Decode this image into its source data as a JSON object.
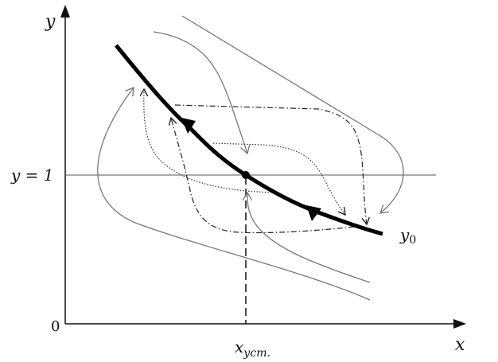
{
  "labels": {
    "y_axis": "y",
    "x_axis": "x",
    "y_equals_one": "y = 1",
    "origin": "0",
    "x_steady_main": "x",
    "x_steady_sub": "уст.",
    "curve_y0_main": "y",
    "curve_y0_sub": "0"
  },
  "colors": {
    "axis": "#111111",
    "main_curve": "#000000",
    "trajectories": "#777777"
  }
}
